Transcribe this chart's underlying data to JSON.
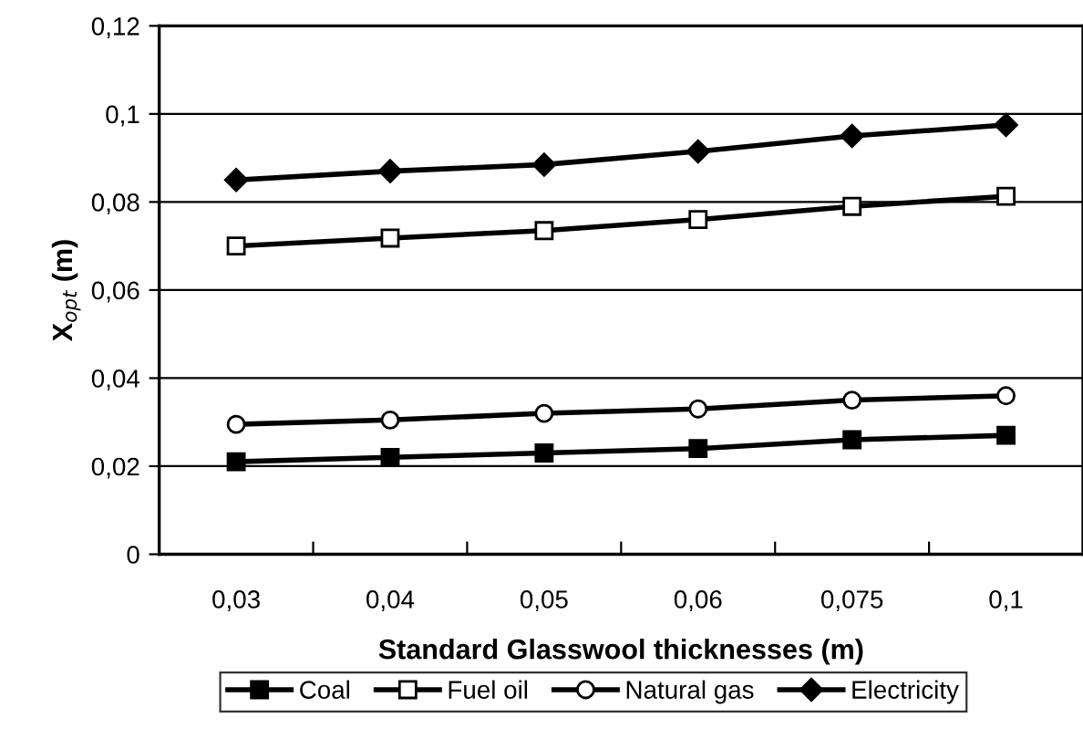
{
  "chart_data": {
    "type": "line",
    "xlabel": "Standard Glasswool thicknesses (m)",
    "ylabel": "X$_{opt}$ (m)",
    "categories": [
      "0,03",
      "0,04",
      "0,05",
      "0,06",
      "0,075",
      "0,1"
    ],
    "series": [
      {
        "name": "Coal",
        "color": "#000000",
        "marker": "square",
        "values": [
          0.021,
          0.022,
          0.023,
          0.024,
          0.026,
          0.027
        ]
      },
      {
        "name": "Fuel oil",
        "color": "#000000",
        "marker": "square",
        "colors": [
          "#ffffff",
          "#ffffff",
          "#ffffff",
          "#ffffff",
          "#ffffff",
          "#ffffff"
        ],
        "values": [
          0.07,
          0.0718,
          0.0735,
          0.076,
          0.079,
          0.0813
        ]
      },
      {
        "name": "Natural gas",
        "color": "#000000",
        "marker": "circle",
        "colors": [
          "#ffffff",
          "#ffffff",
          "#ffffff",
          "#ffffff",
          "#ffffff",
          "#ffffff"
        ],
        "values": [
          0.0295,
          0.0305,
          0.032,
          0.033,
          0.035,
          0.036
        ]
      },
      {
        "name": "Electricity",
        "color": "#000000",
        "marker": "diamond",
        "values": [
          0.085,
          0.087,
          0.0885,
          0.0915,
          0.095,
          0.0975
        ]
      }
    ],
    "ylim": [
      0,
      0.12
    ],
    "yticks": [
      0,
      {
        "value": 0.02,
        "label": "0,02"
      },
      {
        "value": 0.04,
        "label": "0,04"
      },
      {
        "value": 0.06,
        "label": "0,06"
      },
      {
        "value": 0.08,
        "label": "0,08"
      },
      {
        "value": 0.1,
        "label": "0,1"
      },
      {
        "value": 0.12,
        "label": "0,12"
      }
    ],
    "grid": "y",
    "legend": "bottom",
    "line_style": "solid"
  }
}
